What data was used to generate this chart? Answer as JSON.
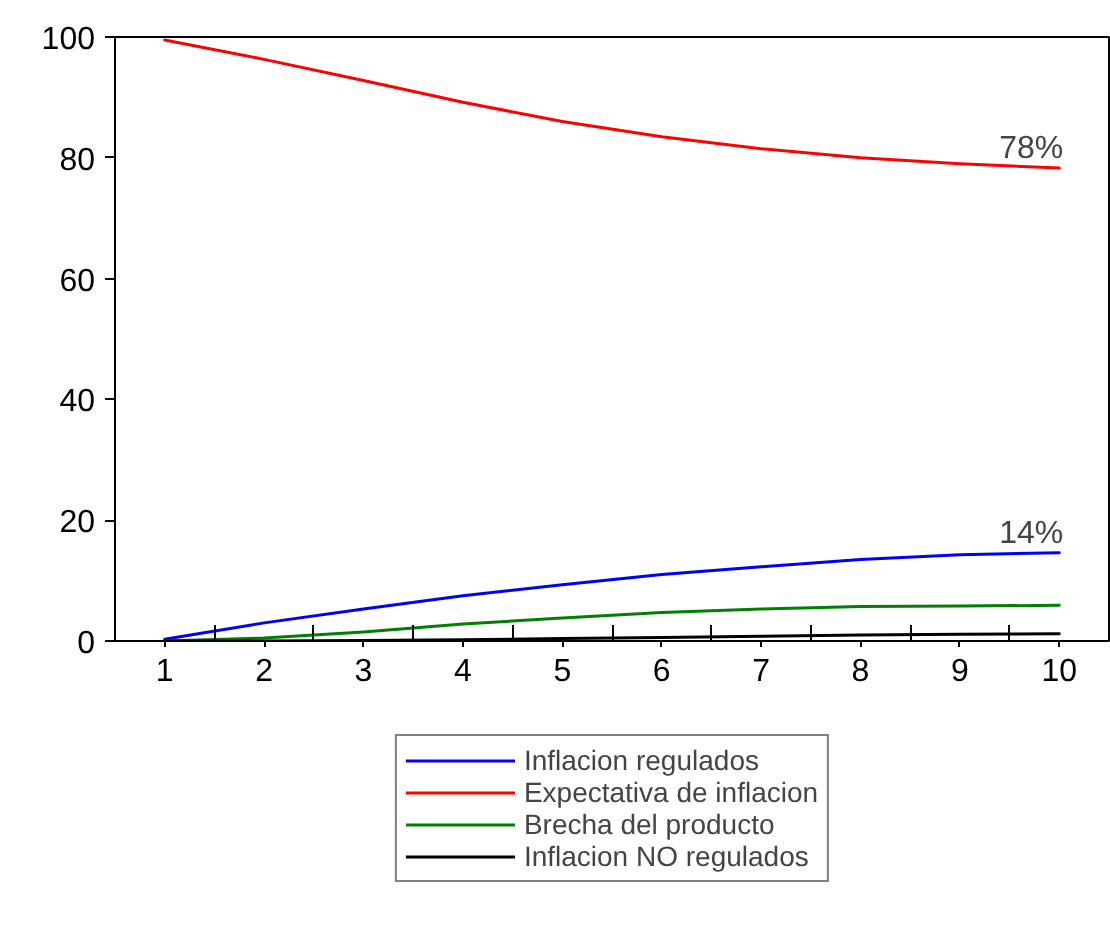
{
  "chart_data": {
    "type": "line",
    "x": [
      1,
      2,
      3,
      4,
      5,
      6,
      7,
      8,
      9,
      10
    ],
    "xlim": [
      0.5,
      10.5
    ],
    "xticks": [
      1,
      2,
      3,
      4,
      5,
      6,
      7,
      8,
      9,
      10
    ],
    "ylim": [
      0,
      100
    ],
    "yticks": [
      0,
      20,
      40,
      60,
      80,
      100
    ],
    "grid": false,
    "legend": "bottom",
    "marker": "none",
    "line_style": "solid",
    "series": [
      {
        "name": "Inflacion regulados",
        "color": "#0000ff",
        "values": [
          0.3,
          3,
          5.3,
          7.5,
          9.3,
          11,
          12.3,
          13.5,
          14.3,
          14.6
        ]
      },
      {
        "name": "Expectativa de inflacion",
        "color": "#ff0000",
        "values": [
          99.5,
          96.3,
          92.8,
          89.2,
          86,
          83.5,
          81.5,
          80,
          79,
          78.3
        ]
      },
      {
        "name": "Brecha del producto",
        "color": "#008000",
        "values": [
          0,
          0.5,
          1.5,
          2.8,
          3.8,
          4.7,
          5.3,
          5.7,
          5.8,
          5.9
        ]
      },
      {
        "name": "Inflacion NO regulados",
        "color": "#000000",
        "values": [
          0,
          0,
          0.1,
          0.2,
          0.4,
          0.6,
          0.8,
          1.0,
          1.1,
          1.2
        ]
      }
    ],
    "annotations": [
      {
        "text": "78%",
        "x": 10,
        "y": 78.3
      },
      {
        "text": "14%",
        "x": 10,
        "y": 14.6
      }
    ]
  }
}
